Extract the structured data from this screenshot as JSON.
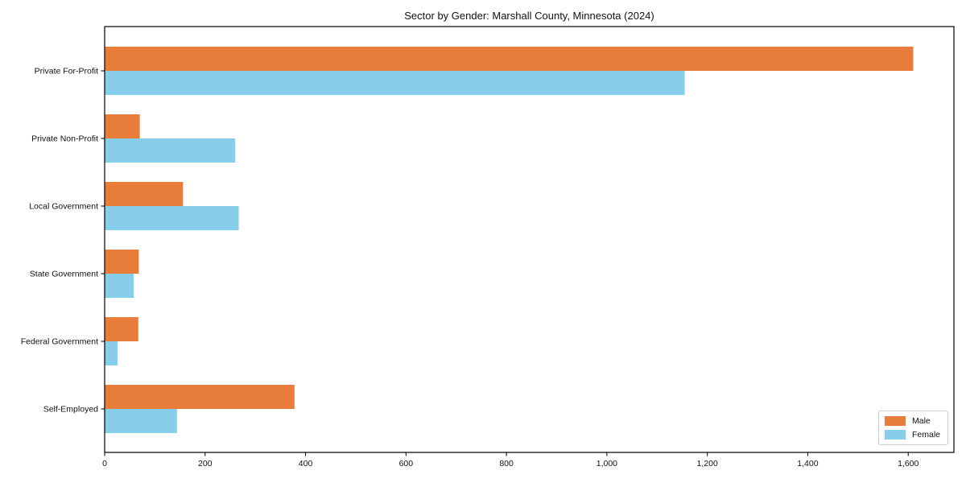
{
  "title": "Sector by Gender: Marshall County, Minnesota (2024)",
  "chart_data": {
    "type": "bar",
    "orientation": "horizontal",
    "title": "Sector by Gender: Marshall County, Minnesota (2024)",
    "categories": [
      "Private For-Profit",
      "Private Non-Profit",
      "Local Government",
      "State Government",
      "Federal Government",
      "Self-Employed"
    ],
    "series": [
      {
        "name": "Male",
        "color": "#E87D3B",
        "values": [
          1610,
          70,
          156,
          68,
          67,
          378
        ]
      },
      {
        "name": "Female",
        "color": "#87CEEB",
        "values": [
          1155,
          260,
          267,
          58,
          26,
          144
        ]
      }
    ],
    "xlabel": "",
    "ylabel": "",
    "xlim": [
      0,
      1691
    ],
    "x_ticks": [
      0,
      200,
      400,
      600,
      800,
      1000,
      1200,
      1400,
      1600
    ],
    "x_tick_labels": [
      "0",
      "200",
      "400",
      "600",
      "800",
      "1,000",
      "1,200",
      "1,400",
      "1,600"
    ],
    "grid": false,
    "legend": {
      "position": "lower right",
      "entries": [
        "Male",
        "Female"
      ]
    }
  },
  "colors": {
    "male": "#E87D3B",
    "female": "#87CEEB",
    "axis": "#000000",
    "legend_border": "#cccccc",
    "background": "#ffffff"
  }
}
